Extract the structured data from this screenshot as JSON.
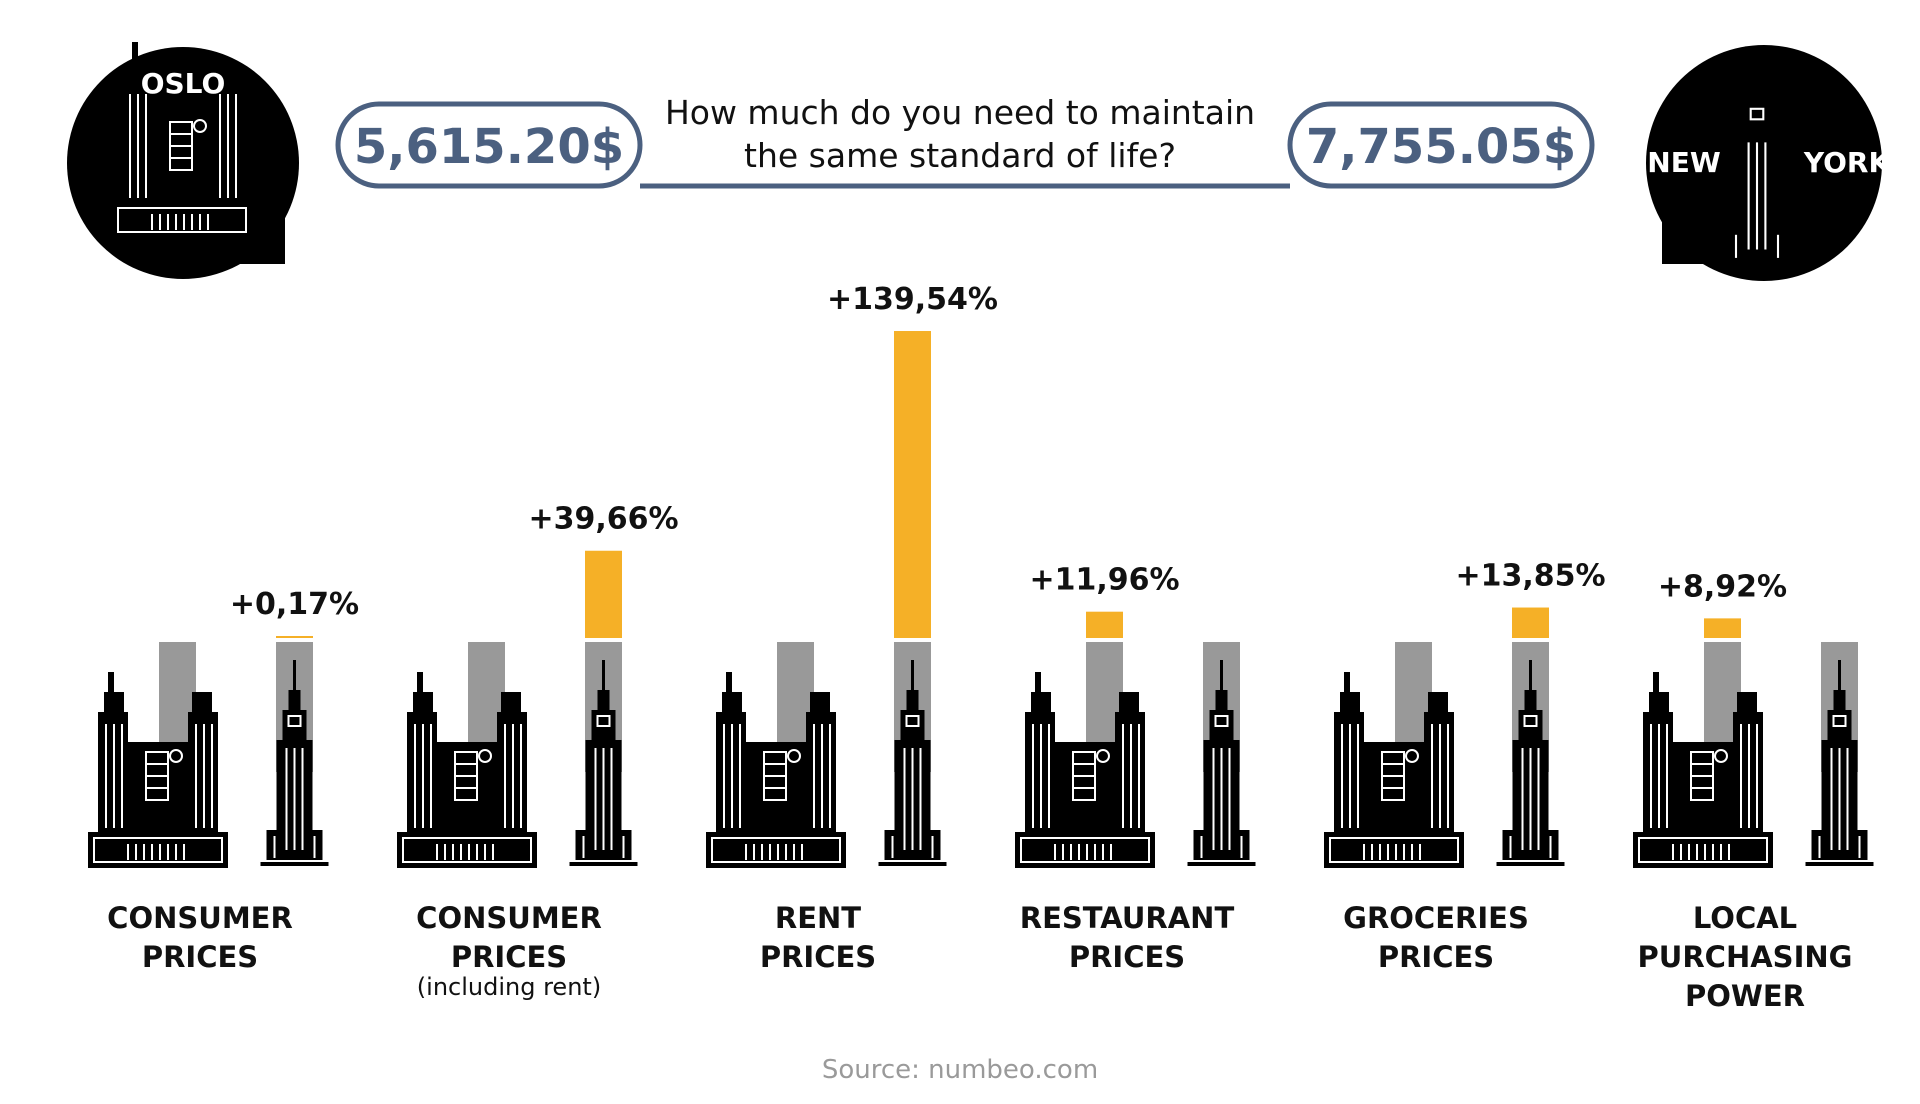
{
  "header": {
    "left_city": "OSLO",
    "right_city_word1": "NEW",
    "right_city_word2": "YORK",
    "left_amount": "5,615.20$",
    "right_amount": "7,755.05$",
    "question_line1": "How much do you need to maintain",
    "question_line2": "the same standard of life?"
  },
  "source": "Source: numbeo.com",
  "colors": {
    "base_bar": "#999999",
    "increase_bar": "#f5b027",
    "pill_border": "#4b6080",
    "building": "#000000"
  },
  "chart_data": {
    "type": "bar",
    "categories": [
      {
        "line1": "CONSUMER",
        "line2": "PRICES",
        "line3": "",
        "sub": ""
      },
      {
        "line1": "CONSUMER",
        "line2": "PRICES",
        "line3": "",
        "sub": "(including rent)"
      },
      {
        "line1": "RENT",
        "line2": "PRICES",
        "line3": "",
        "sub": ""
      },
      {
        "line1": "RESTAURANT",
        "line2": "PRICES",
        "line3": "",
        "sub": ""
      },
      {
        "line1": "GROCERIES",
        "line2": "PRICES",
        "line3": "",
        "sub": ""
      },
      {
        "line1": "LOCAL",
        "line2": "PURCHASING",
        "line3": "POWER",
        "sub": ""
      }
    ],
    "values": [
      0.17,
      39.66,
      139.54,
      11.96,
      13.85,
      8.92
    ],
    "labels": [
      "+0,17%",
      "+39,66%",
      "+139,54%",
      "+11,96%",
      "+13,85%",
      "+8,92%"
    ],
    "higher_city": [
      "NEW YORK",
      "NEW YORK",
      "NEW YORK",
      "OSLO",
      "NEW YORK",
      "OSLO"
    ]
  }
}
